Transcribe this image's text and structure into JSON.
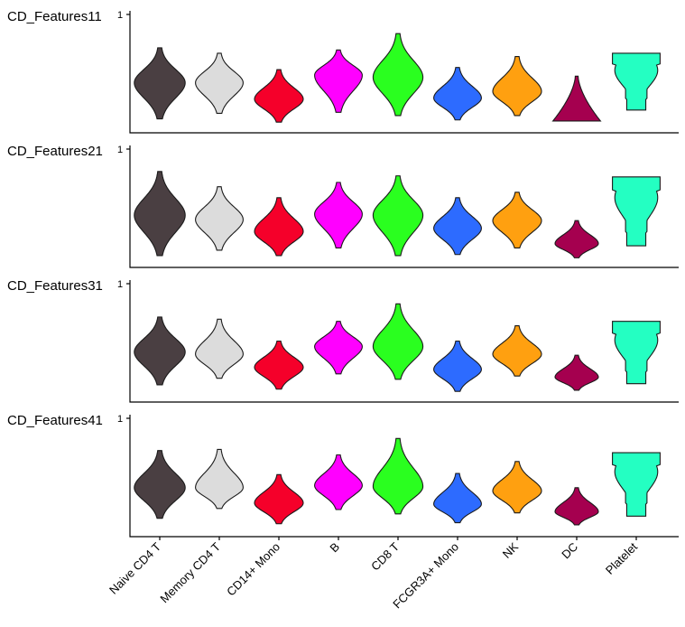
{
  "chart_data": {
    "type": "violin",
    "categories": [
      "Naive CD4 T",
      "Memory CD4 T",
      "CD14+ Mono",
      "B",
      "CD8 T",
      "FCGR3A+ Mono",
      "NK",
      "DC",
      "Platelet"
    ],
    "colors": [
      "#4a3f42",
      "#dcdcdc",
      "#f5002a",
      "#ff00ff",
      "#2aff1f",
      "#2d6bff",
      "#ffa010",
      "#a5004f",
      "#24ffc2"
    ],
    "ylim": [
      0,
      1
    ],
    "y_tick_label": "1",
    "panels": [
      {
        "feature": "CD_Features11",
        "violins": [
          {
            "median": 0.4,
            "low": 0.07,
            "high": 0.72,
            "width": 0.94
          },
          {
            "median": 0.4,
            "low": 0.12,
            "high": 0.67,
            "width": 0.88
          },
          {
            "median": 0.25,
            "low": 0.04,
            "high": 0.52,
            "width": 0.9
          },
          {
            "median": 0.47,
            "low": 0.13,
            "high": 0.7,
            "width": 0.88
          },
          {
            "median": 0.45,
            "low": 0.1,
            "high": 0.85,
            "width": 0.92
          },
          {
            "median": 0.26,
            "low": 0.06,
            "high": 0.54,
            "width": 0.88
          },
          {
            "median": 0.32,
            "low": 0.1,
            "high": 0.64,
            "width": 0.9
          },
          {
            "median": 0.16,
            "low": 0.05,
            "high": 0.46,
            "width": 0.88,
            "shape": "dc"
          },
          {
            "median": 0.48,
            "low": 0.15,
            "high": 0.67,
            "width": 0.88,
            "shape": "platelet"
          }
        ]
      },
      {
        "feature": "CD_Features21",
        "violins": [
          {
            "median": 0.42,
            "low": 0.05,
            "high": 0.82,
            "width": 0.94
          },
          {
            "median": 0.38,
            "low": 0.1,
            "high": 0.68,
            "width": 0.88
          },
          {
            "median": 0.27,
            "low": 0.05,
            "high": 0.58,
            "width": 0.9
          },
          {
            "median": 0.43,
            "low": 0.12,
            "high": 0.72,
            "width": 0.88
          },
          {
            "median": 0.42,
            "low": 0.05,
            "high": 0.78,
            "width": 0.92
          },
          {
            "median": 0.3,
            "low": 0.06,
            "high": 0.58,
            "width": 0.88
          },
          {
            "median": 0.37,
            "low": 0.12,
            "high": 0.63,
            "width": 0.9
          },
          {
            "median": 0.16,
            "low": 0.03,
            "high": 0.37,
            "width": 0.8
          },
          {
            "median": 0.52,
            "low": 0.14,
            "high": 0.77,
            "width": 0.88,
            "shape": "platelet"
          }
        ]
      },
      {
        "feature": "CD_Features31",
        "violins": [
          {
            "median": 0.4,
            "low": 0.1,
            "high": 0.72,
            "width": 0.94
          },
          {
            "median": 0.38,
            "low": 0.16,
            "high": 0.7,
            "width": 0.88
          },
          {
            "median": 0.26,
            "low": 0.06,
            "high": 0.5,
            "width": 0.9
          },
          {
            "median": 0.45,
            "low": 0.2,
            "high": 0.68,
            "width": 0.88
          },
          {
            "median": 0.45,
            "low": 0.15,
            "high": 0.84,
            "width": 0.92
          },
          {
            "median": 0.24,
            "low": 0.04,
            "high": 0.5,
            "width": 0.88
          },
          {
            "median": 0.38,
            "low": 0.18,
            "high": 0.64,
            "width": 0.9
          },
          {
            "median": 0.17,
            "low": 0.05,
            "high": 0.37,
            "width": 0.8
          },
          {
            "median": 0.43,
            "low": 0.11,
            "high": 0.68,
            "width": 0.88,
            "shape": "platelet"
          }
        ]
      },
      {
        "feature": "CD_Features41",
        "violins": [
          {
            "median": 0.39,
            "low": 0.11,
            "high": 0.73,
            "width": 0.94
          },
          {
            "median": 0.39,
            "low": 0.2,
            "high": 0.74,
            "width": 0.88
          },
          {
            "median": 0.25,
            "low": 0.06,
            "high": 0.51,
            "width": 0.9
          },
          {
            "median": 0.41,
            "low": 0.19,
            "high": 0.69,
            "width": 0.88
          },
          {
            "median": 0.4,
            "low": 0.15,
            "high": 0.84,
            "width": 0.92
          },
          {
            "median": 0.24,
            "low": 0.07,
            "high": 0.52,
            "width": 0.88
          },
          {
            "median": 0.36,
            "low": 0.16,
            "high": 0.63,
            "width": 0.9
          },
          {
            "median": 0.17,
            "low": 0.05,
            "high": 0.39,
            "width": 0.8
          },
          {
            "median": 0.46,
            "low": 0.13,
            "high": 0.71,
            "width": 0.88,
            "shape": "platelet"
          }
        ]
      }
    ]
  }
}
